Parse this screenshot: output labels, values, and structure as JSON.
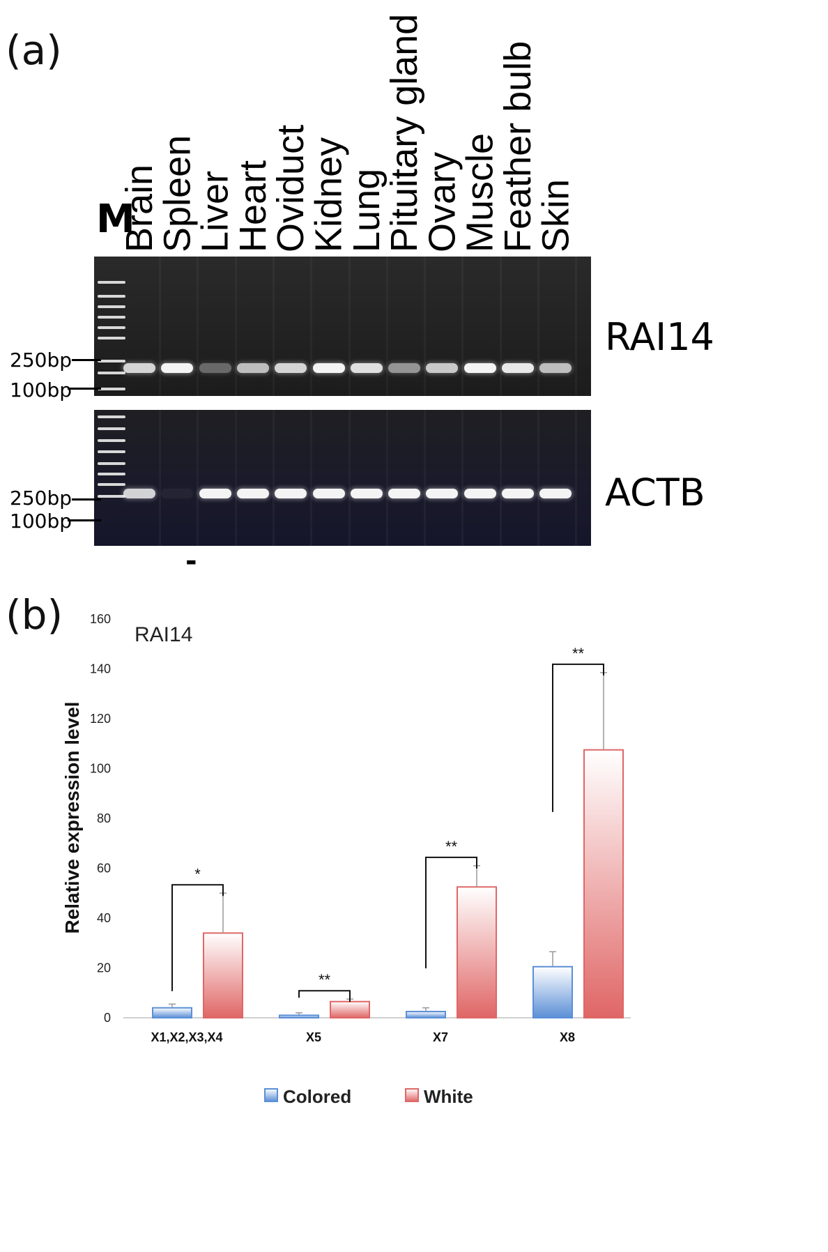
{
  "panel_a": {
    "label": "(a)",
    "marker_label": "M",
    "lanes": [
      "Brain",
      "Spleen",
      "Liver",
      "Heart",
      "Oviduct",
      "Kidney",
      "Lung",
      "Pituitary gland",
      "Ovary",
      "Muscle",
      "Feather bulb",
      "Skin"
    ],
    "gels": [
      {
        "gene": "RAI14",
        "size_markers": [
          "250bp",
          "100bp"
        ],
        "band_intensity": [
          0.85,
          1.0,
          0.35,
          0.75,
          0.85,
          1.0,
          0.9,
          0.55,
          0.8,
          1.0,
          0.95,
          0.75
        ]
      },
      {
        "gene": "ACTB",
        "size_markers": [
          "250bp",
          "100bp"
        ],
        "band_intensity": [
          0.85,
          0.05,
          1.0,
          1.0,
          1.0,
          1.0,
          1.0,
          1.0,
          1.0,
          1.0,
          1.0,
          1.0
        ]
      }
    ],
    "below_gel_mark": "-"
  },
  "panel_b": {
    "label": "(b)"
  },
  "chart_data": {
    "type": "bar",
    "title": "RAI14",
    "xlabel": "",
    "ylabel": "Relative expression level",
    "ylim": [
      0,
      160
    ],
    "yticks": [
      0,
      20,
      40,
      60,
      80,
      100,
      120,
      140,
      160
    ],
    "categories": [
      "X1,X2,X3,X4",
      "X5",
      "X7",
      "X8"
    ],
    "series": [
      {
        "name": "Colored",
        "values": [
          4,
          1,
          2.5,
          20.5
        ],
        "error": [
          1.5,
          1,
          1.5,
          6
        ],
        "color": "#5b8fd6"
      },
      {
        "name": "White",
        "values": [
          34,
          6.5,
          52.5,
          107.5
        ],
        "error": [
          16,
          1,
          8.5,
          31
        ],
        "color": "#e06666"
      }
    ],
    "significance": [
      "*",
      "**",
      "**",
      "**"
    ],
    "legend": "bottom",
    "grid": false
  }
}
